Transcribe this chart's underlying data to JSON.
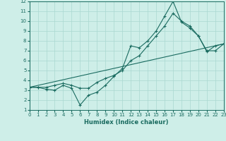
{
  "xlabel": "Humidex (Indice chaleur)",
  "xlim": [
    0,
    23
  ],
  "ylim": [
    1,
    12
  ],
  "xticks": [
    0,
    1,
    2,
    3,
    4,
    5,
    6,
    7,
    8,
    9,
    10,
    11,
    12,
    13,
    14,
    15,
    16,
    17,
    18,
    19,
    20,
    21,
    22,
    23
  ],
  "yticks": [
    1,
    2,
    3,
    4,
    5,
    6,
    7,
    8,
    9,
    10,
    11,
    12
  ],
  "bg_color": "#ceeee8",
  "grid_color": "#aad8d0",
  "line_color": "#1a6b60",
  "line1_x": [
    0,
    1,
    2,
    3,
    4,
    5,
    6,
    7,
    8,
    9,
    10,
    11,
    12,
    13,
    14,
    15,
    16,
    17,
    18,
    19,
    20,
    21,
    22,
    23
  ],
  "line1_y": [
    3.3,
    3.3,
    3.1,
    3.0,
    3.5,
    3.2,
    1.5,
    2.5,
    2.8,
    3.5,
    4.4,
    5.2,
    7.5,
    7.3,
    8.0,
    9.0,
    10.5,
    12.0,
    9.9,
    9.3,
    8.5,
    6.9,
    7.5,
    7.7
  ],
  "line2_x": [
    0,
    1,
    2,
    3,
    4,
    5,
    6,
    7,
    8,
    9,
    10,
    11,
    12,
    13,
    14,
    15,
    16,
    17,
    18,
    19,
    20,
    21,
    22,
    23
  ],
  "line2_y": [
    3.3,
    3.3,
    3.3,
    3.5,
    3.7,
    3.5,
    3.2,
    3.2,
    3.8,
    4.2,
    4.5,
    5.0,
    6.0,
    6.5,
    7.5,
    8.5,
    9.5,
    10.8,
    10.0,
    9.5,
    8.5,
    7.0,
    7.0,
    7.7
  ],
  "line3_x": [
    0,
    23
  ],
  "line3_y": [
    3.3,
    7.7
  ]
}
